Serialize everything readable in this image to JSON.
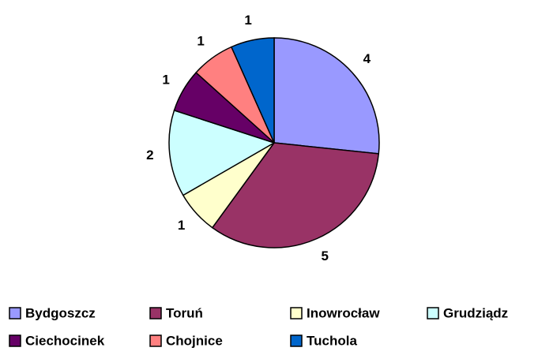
{
  "chart_data": {
    "type": "pie",
    "categories": [
      "Bydgoszcz",
      "Toruń",
      "Inowrocław",
      "Grudziądz",
      "Ciechocinek",
      "Chojnice",
      "Tuchola"
    ],
    "values": [
      4,
      5,
      1,
      2,
      1,
      1,
      1
    ],
    "colors": [
      "#9999ff",
      "#993366",
      "#ffffcc",
      "#ccffff",
      "#660066",
      "#ff8080",
      "#0066cc"
    ],
    "legend": "bottom"
  }
}
